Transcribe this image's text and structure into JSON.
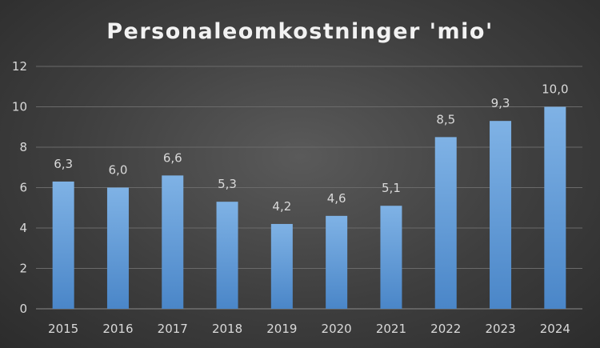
{
  "chart_data": {
    "type": "bar",
    "title": "Personaleomkostninger 'mio'",
    "xlabel": "",
    "ylabel": "",
    "categories": [
      "2015",
      "2016",
      "2017",
      "2018",
      "2019",
      "2020",
      "2021",
      "2022",
      "2023",
      "2024"
    ],
    "values": [
      6.3,
      6.0,
      6.6,
      5.3,
      4.2,
      4.6,
      5.1,
      8.5,
      9.3,
      10.0
    ],
    "data_labels": [
      "6,3",
      "6,0",
      "6,6",
      "5,3",
      "4,2",
      "4,6",
      "5,1",
      "8,5",
      "9,3",
      "10,0"
    ],
    "ylim": [
      0,
      12
    ],
    "yticks": [
      0,
      2,
      4,
      6,
      8,
      10,
      12
    ],
    "ytick_labels": [
      "0",
      "2",
      "4",
      "6",
      "8",
      "10",
      "12"
    ],
    "grid": true,
    "legend": "none",
    "colors": {
      "bar_top": "#7fb2e5",
      "bar_bottom": "#4a86c8",
      "background": "#3e3e3e",
      "text": "#d9d9d9",
      "title": "#f2f2f2"
    }
  }
}
